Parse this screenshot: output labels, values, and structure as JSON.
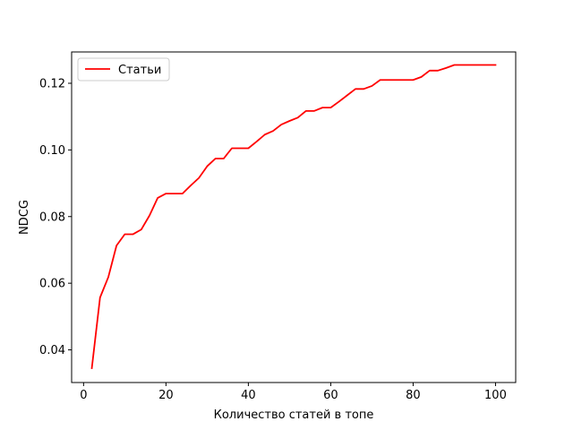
{
  "chart_data": {
    "type": "line",
    "xlabel": "Количество статей в топе",
    "ylabel": "NDCG",
    "xlim": [
      -2.9,
      104.9
    ],
    "ylim": [
      0.0302,
      0.1294
    ],
    "xticks": [
      0,
      20,
      40,
      60,
      80,
      100
    ],
    "yticks": [
      0.04,
      0.06,
      0.08,
      0.1,
      0.12
    ],
    "xtick_labels": [
      "0",
      "20",
      "40",
      "60",
      "80",
      "100"
    ],
    "ytick_labels": [
      "0.04",
      "0.06",
      "0.08",
      "0.10",
      "0.12"
    ],
    "grid": false,
    "legend_position": "upper-left",
    "series": [
      {
        "name": "Статьи",
        "color": "#ff0000",
        "x": [
          2,
          4,
          6,
          8,
          10,
          12,
          14,
          16,
          18,
          20,
          22,
          24,
          26,
          28,
          30,
          32,
          34,
          36,
          38,
          40,
          42,
          44,
          46,
          48,
          50,
          52,
          54,
          56,
          58,
          60,
          62,
          64,
          66,
          68,
          70,
          72,
          74,
          76,
          78,
          80,
          82,
          84,
          86,
          88,
          90,
          92,
          94,
          96,
          98,
          100
        ],
        "y": [
          0.0345,
          0.0557,
          0.0618,
          0.0713,
          0.0747,
          0.0747,
          0.0761,
          0.0803,
          0.0856,
          0.0869,
          0.0869,
          0.0869,
          0.0893,
          0.0916,
          0.0951,
          0.0974,
          0.0974,
          0.1005,
          0.1005,
          0.1005,
          0.1025,
          0.1046,
          0.1057,
          0.1076,
          0.1087,
          0.1097,
          0.1117,
          0.1117,
          0.1127,
          0.1127,
          0.1145,
          0.1164,
          0.1183,
          0.1183,
          0.1192,
          0.121,
          0.121,
          0.121,
          0.121,
          0.121,
          0.1219,
          0.1238,
          0.1238,
          0.1246,
          0.1255,
          0.1255,
          0.1255,
          0.1255,
          0.1255,
          0.1255
        ]
      }
    ]
  }
}
